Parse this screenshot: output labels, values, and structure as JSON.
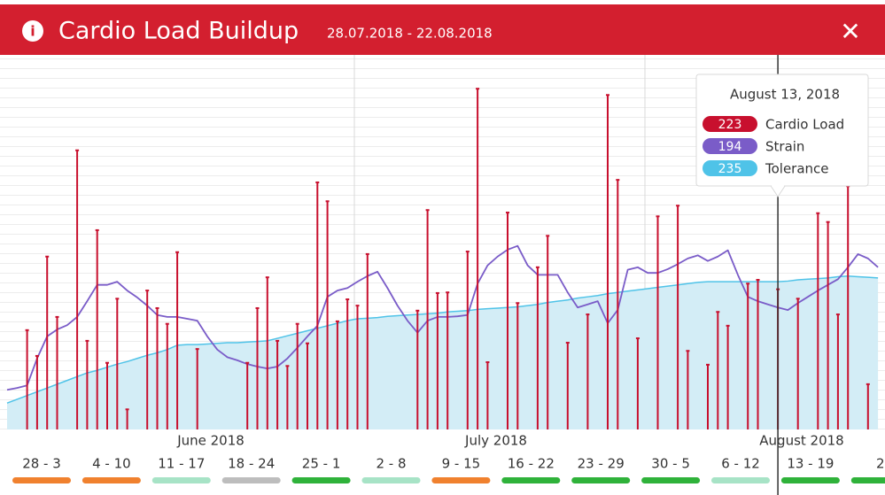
{
  "chart_data": {
    "type": "lollipop-line-area",
    "title": "Cardio Load Buildup",
    "subtitle": "28.07.2018 - 22.08.2018",
    "close": "✕",
    "info": "i",
    "ylim": [
      0,
      600
    ],
    "months": [
      "June 2018",
      "July 2018",
      "August 2018"
    ],
    "weeks": [
      {
        "label": "28 - 3",
        "color": "#f0812e"
      },
      {
        "label": "4 - 10",
        "color": "#f0812e"
      },
      {
        "label": "11 - 17",
        "color": "#a7e3c6"
      },
      {
        "label": "18 - 24",
        "color": "#bdbdbd"
      },
      {
        "label": "25 - 1",
        "color": "#2fb23a"
      },
      {
        "label": "2 - 8",
        "color": "#a7e3c6"
      },
      {
        "label": "9 - 15",
        "color": "#f0812e"
      },
      {
        "label": "16 - 22",
        "color": "#2fb23a"
      },
      {
        "label": "23 - 29",
        "color": "#2fb23a"
      },
      {
        "label": "30 - 5",
        "color": "#2fb23a"
      },
      {
        "label": "6 - 12",
        "color": "#a7e3c6"
      },
      {
        "label": "13 - 19",
        "color": "#2fb23a"
      },
      {
        "label": "2",
        "color": "#2fb23a"
      }
    ],
    "tooltip": {
      "title": "August 13, 2018"
    },
    "series": [
      {
        "name": "Cardio Load",
        "color": "#c8102e",
        "kind": "lollipop",
        "values": [
          null,
          null,
          158,
          117,
          275,
          179,
          null,
          444,
          141,
          317,
          106,
          208,
          32,
          null,
          221,
          193,
          168,
          282,
          null,
          128,
          null,
          null,
          null,
          null,
          106,
          193,
          242,
          141,
          101,
          168,
          137,
          393,
          363,
          172,
          207,
          197,
          279,
          null,
          null,
          null,
          null,
          189,
          349,
          217,
          218,
          null,
          283,
          542,
          107,
          null,
          345,
          201,
          null,
          258,
          308,
          null,
          138,
          null,
          183,
          null,
          532,
          397,
          null,
          145,
          null,
          339,
          null,
          356,
          125,
          null,
          103,
          187,
          165,
          null,
          232,
          238,
          null,
          223,
          null,
          208,
          null,
          344,
          330,
          183,
          387,
          null,
          72,
          null
        ]
      },
      {
        "name": "Strain",
        "color": "#7a5cc8",
        "kind": "line",
        "values": [
          63,
          66,
          70,
          113,
          148,
          159,
          166,
          179,
          204,
          230,
          230,
          235,
          221,
          210,
          197,
          182,
          179,
          179,
          176,
          173,
          148,
          127,
          115,
          110,
          104,
          100,
          97,
          100,
          113,
          130,
          148,
          165,
          211,
          221,
          225,
          235,
          244,
          251,
          225,
          197,
          173,
          154,
          173,
          179,
          179,
          180,
          182,
          232,
          261,
          275,
          286,
          292,
          261,
          246,
          246,
          246,
          218,
          194,
          199,
          204,
          169,
          190,
          254,
          258,
          249,
          249,
          255,
          263,
          272,
          277,
          268,
          275,
          285,
          246,
          211,
          204,
          199,
          194,
          190,
          201,
          211,
          221,
          230,
          239,
          258,
          279,
          272,
          258
        ]
      },
      {
        "name": "Tolerance",
        "color": "#4fc3e8",
        "kind": "area",
        "values": [
          42,
          48,
          54,
          60,
          66,
          72,
          78,
          84,
          90,
          94,
          99,
          104,
          108,
          113,
          118,
          122,
          127,
          134,
          135,
          135,
          136,
          137,
          138,
          138,
          139,
          140,
          141,
          145,
          149,
          153,
          157,
          161,
          165,
          169,
          173,
          176,
          177,
          178,
          180,
          181,
          182,
          183,
          184,
          185,
          187,
          188,
          189,
          191,
          192,
          193,
          194,
          195,
          197,
          199,
          202,
          204,
          206,
          209,
          211,
          213,
          216,
          218,
          220,
          222,
          224,
          226,
          228,
          230,
          232,
          234,
          235,
          235,
          235,
          235,
          235,
          235,
          235,
          235,
          236,
          238,
          239,
          240,
          241,
          243,
          244,
          243,
          242,
          241
        ]
      }
    ]
  }
}
